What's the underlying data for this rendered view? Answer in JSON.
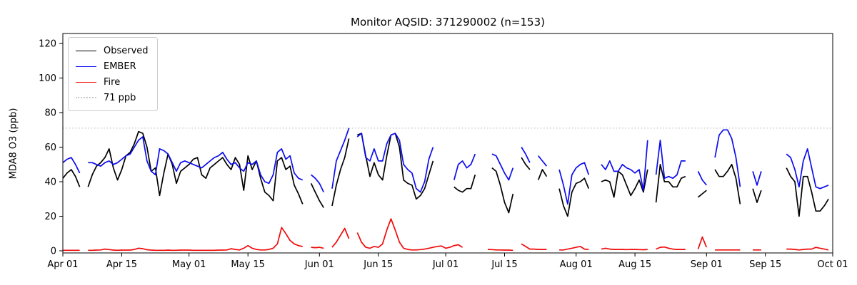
{
  "title": "Monitor AQSID: 371290002 (n=153)",
  "chart_data": {
    "type": "line",
    "title": "Monitor AQSID: 371290002 (n=153)",
    "xlabel": "",
    "ylabel": "MDA8 O3 (ppb)",
    "ylim": [
      -1,
      126
    ],
    "yticks": [
      0,
      20,
      40,
      60,
      80,
      100,
      120
    ],
    "grid": false,
    "legend_position": "upper left",
    "start_date": "Apr 01",
    "end_date": "Oct 01",
    "n_days": 183,
    "xticks": [
      {
        "label": "Apr 01",
        "day": 0
      },
      {
        "label": "Apr 15",
        "day": 14
      },
      {
        "label": "May 01",
        "day": 30
      },
      {
        "label": "May 15",
        "day": 44
      },
      {
        "label": "Jun 01",
        "day": 61
      },
      {
        "label": "Jun 15",
        "day": 75
      },
      {
        "label": "Jul 01",
        "day": 91
      },
      {
        "label": "Jul 15",
        "day": 105
      },
      {
        "label": "Aug 01",
        "day": 122
      },
      {
        "label": "Aug 15",
        "day": 136
      },
      {
        "label": "Sep 01",
        "day": 153
      },
      {
        "label": "Sep 15",
        "day": 167
      },
      {
        "label": "Oct 01",
        "day": 183
      }
    ],
    "reference_line": {
      "value": 71,
      "label": "71 ppb",
      "color": "#c8c8c8",
      "style": "dotted"
    },
    "series": [
      {
        "name": "Observed",
        "color": "#000000",
        "values": [
          42,
          45,
          47,
          43,
          37,
          null,
          37,
          44,
          49,
          51,
          54,
          59,
          48,
          41,
          47,
          55,
          57,
          62,
          69,
          68,
          60,
          46,
          48,
          32,
          45,
          56,
          50,
          39,
          46,
          48,
          50,
          53,
          54,
          44,
          42,
          48,
          50,
          52,
          54,
          50,
          47,
          54,
          50,
          35,
          55,
          47,
          52,
          42,
          34,
          32,
          29,
          52,
          54,
          47,
          49,
          38,
          33,
          27,
          null,
          39,
          34,
          29,
          25,
          null,
          26,
          38,
          47,
          54,
          65,
          null,
          67,
          68,
          55,
          43,
          51,
          44,
          41,
          55,
          67,
          68,
          60,
          41,
          39,
          38,
          30,
          32,
          36,
          44,
          52,
          null,
          null,
          null,
          null,
          37,
          35,
          34,
          36,
          36,
          44,
          null,
          null,
          null,
          48,
          46,
          38,
          28,
          22,
          33,
          null,
          54,
          50,
          47,
          null,
          41,
          47,
          43,
          null,
          null,
          36,
          26,
          20,
          34,
          39,
          40,
          42,
          36,
          null,
          null,
          40,
          41,
          40,
          31,
          46,
          44,
          38,
          32,
          36,
          41,
          34,
          47,
          null,
          28,
          50,
          40,
          40,
          37,
          37,
          42,
          43,
          null,
          null,
          31,
          33,
          35,
          null,
          47,
          43,
          43,
          46,
          50,
          42,
          27,
          null,
          null,
          36,
          28,
          35,
          null,
          null,
          null,
          null,
          null,
          48,
          43,
          40,
          20,
          43,
          43,
          34,
          23,
          23,
          26,
          30
        ]
      },
      {
        "name": "EMBER",
        "color": "#0b0bf0",
        "values": [
          51,
          53,
          54,
          50,
          45,
          null,
          51,
          51,
          50,
          49,
          51,
          52,
          50,
          51,
          53,
          55,
          56,
          60,
          64,
          66,
          52,
          46,
          44,
          59,
          58,
          56,
          51,
          46,
          51,
          52,
          51,
          50,
          49,
          48,
          50,
          52,
          54,
          55,
          57,
          53,
          50,
          51,
          48,
          46,
          51,
          50,
          52,
          44,
          40,
          39,
          44,
          57,
          59,
          53,
          55,
          45,
          42,
          41,
          null,
          44,
          42,
          39,
          34,
          null,
          36,
          52,
          58,
          64,
          71,
          null,
          66,
          68,
          54,
          52,
          59,
          52,
          52,
          62,
          67,
          68,
          64,
          50,
          47,
          45,
          36,
          34,
          40,
          53,
          60,
          null,
          null,
          null,
          null,
          41,
          50,
          52,
          48,
          50,
          56,
          null,
          null,
          null,
          56,
          55,
          50,
          45,
          41,
          48,
          null,
          60,
          56,
          51,
          null,
          55,
          52,
          49,
          null,
          null,
          47,
          38,
          27,
          44,
          48,
          50,
          51,
          44,
          null,
          null,
          50,
          47,
          52,
          46,
          46,
          50,
          48,
          47,
          45,
          47,
          35,
          64,
          null,
          44,
          64,
          42,
          43,
          42,
          44,
          52,
          52,
          null,
          null,
          46,
          41,
          38,
          null,
          54,
          67,
          70,
          70,
          65,
          54,
          37,
          null,
          null,
          46,
          38,
          46,
          null,
          null,
          null,
          null,
          null,
          56,
          54,
          47,
          37,
          52,
          59,
          48,
          37,
          36,
          37,
          38
        ]
      },
      {
        "name": "Fire",
        "color": "#f00a0a",
        "values": [
          0.3,
          0.3,
          0.3,
          0.3,
          0.3,
          null,
          0.3,
          0.3,
          0.4,
          0.5,
          1,
          0.7,
          0.4,
          0.3,
          0.4,
          0.4,
          0.4,
          0.8,
          1.5,
          1.2,
          0.6,
          0.4,
          0.3,
          0.3,
          0.3,
          0.4,
          0.3,
          0.3,
          0.4,
          0.4,
          0.4,
          0.3,
          0.3,
          0.3,
          0.3,
          0.3,
          0.3,
          0.4,
          0.4,
          0.5,
          1.2,
          0.8,
          0.5,
          1.5,
          3,
          1.5,
          0.8,
          0.5,
          0.5,
          0.8,
          1.5,
          4,
          13.5,
          10,
          6,
          4,
          3,
          2.5,
          null,
          2,
          1.8,
          2,
          1.5,
          null,
          2,
          5,
          9,
          13,
          7,
          null,
          10.5,
          5,
          2,
          1.5,
          2.5,
          2,
          4,
          12,
          18.5,
          12,
          5,
          1.5,
          0.8,
          0.5,
          0.5,
          0.7,
          1,
          1.5,
          2,
          2.5,
          2.8,
          1.5,
          2,
          3,
          3.5,
          2,
          null,
          null,
          null,
          null,
          null,
          0.8,
          0.7,
          0.5,
          0.5,
          0.4,
          0.4,
          0.3,
          null,
          4,
          2.5,
          1,
          1,
          0.8,
          0.8,
          0.8,
          null,
          null,
          0.5,
          0.5,
          1,
          1.5,
          2,
          2.5,
          1,
          0.8,
          null,
          null,
          1,
          1.5,
          1,
          0.8,
          0.8,
          0.8,
          0.7,
          0.8,
          0.8,
          0.7,
          0.6,
          0.8,
          null,
          1,
          2,
          2.2,
          1.5,
          1,
          0.8,
          0.8,
          0.8,
          null,
          null,
          1,
          8,
          2,
          null,
          0.5,
          0.5,
          0.5,
          0.5,
          0.5,
          0.5,
          0.5,
          null,
          null,
          0.5,
          0.5,
          0.5,
          null,
          null,
          null,
          null,
          null,
          1,
          1,
          0.8,
          0.5,
          0.8,
          1,
          1,
          2,
          1.5,
          1,
          0.5
        ]
      }
    ]
  }
}
